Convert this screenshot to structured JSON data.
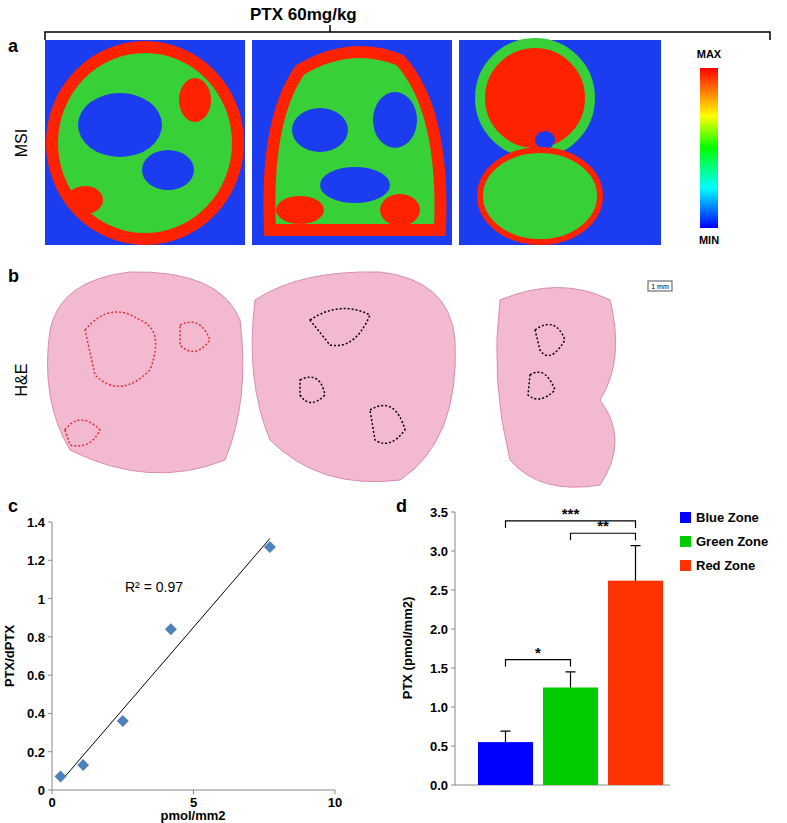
{
  "figure": {
    "title": "PTX 60mg/kg",
    "panel_labels": [
      "a",
      "b",
      "c",
      "d"
    ],
    "row_labels": [
      "MSI",
      "H&E"
    ],
    "colorbar": {
      "max_label": "MAX",
      "min_label": "MIN"
    },
    "scale_bar": "1 mm"
  },
  "chart_data": [
    {
      "type": "scatter",
      "x_label": "pmol/mm2",
      "y_label": "PTX/dPTX",
      "annotation": "R² = 0.97",
      "x": [
        0.3,
        1.1,
        2.5,
        4.2,
        7.7
      ],
      "values": [
        0.07,
        0.13,
        0.36,
        0.84,
        1.27
      ],
      "color": "#4f81bd",
      "marker": "diamond",
      "xlim": [
        0,
        10
      ],
      "xticks": [
        0,
        5,
        10
      ],
      "ylim": [
        0,
        1.4
      ],
      "yticks": [
        0,
        0.2,
        0.4,
        0.6,
        0.8,
        1,
        1.2,
        1.4
      ],
      "grid": false
    },
    {
      "type": "bar",
      "y_label": "PTX (pmol/mm2)",
      "categories": [
        null
      ],
      "series": [
        {
          "name": "Blue Zone",
          "color": "#0000ff",
          "values": [
            0.55
          ],
          "errors": [
            0.14
          ]
        },
        {
          "name": "Green Zone",
          "color": "#00cc00",
          "values": [
            1.25
          ],
          "errors": [
            0.2
          ]
        },
        {
          "name": "Red Zone",
          "color": "#ff3300",
          "values": [
            2.62
          ],
          "errors": [
            0.45
          ]
        }
      ],
      "ylim": [
        0,
        3.5
      ],
      "yticks": [
        {
          "value": 0,
          "label": "0.0"
        },
        0.5,
        {
          "value": 1,
          "label": "1.0"
        },
        1.5,
        {
          "value": 2,
          "label": "2.0"
        },
        2.5,
        {
          "value": 3,
          "label": "3.0"
        },
        3.5
      ],
      "annotations": [
        {
          "text": "*",
          "between": [
            0,
            1
          ]
        },
        {
          "text": "**",
          "between": [
            1,
            2
          ]
        },
        {
          "text": "***",
          "between": [
            0,
            2
          ]
        }
      ],
      "legend": "right",
      "grid": false
    }
  ]
}
